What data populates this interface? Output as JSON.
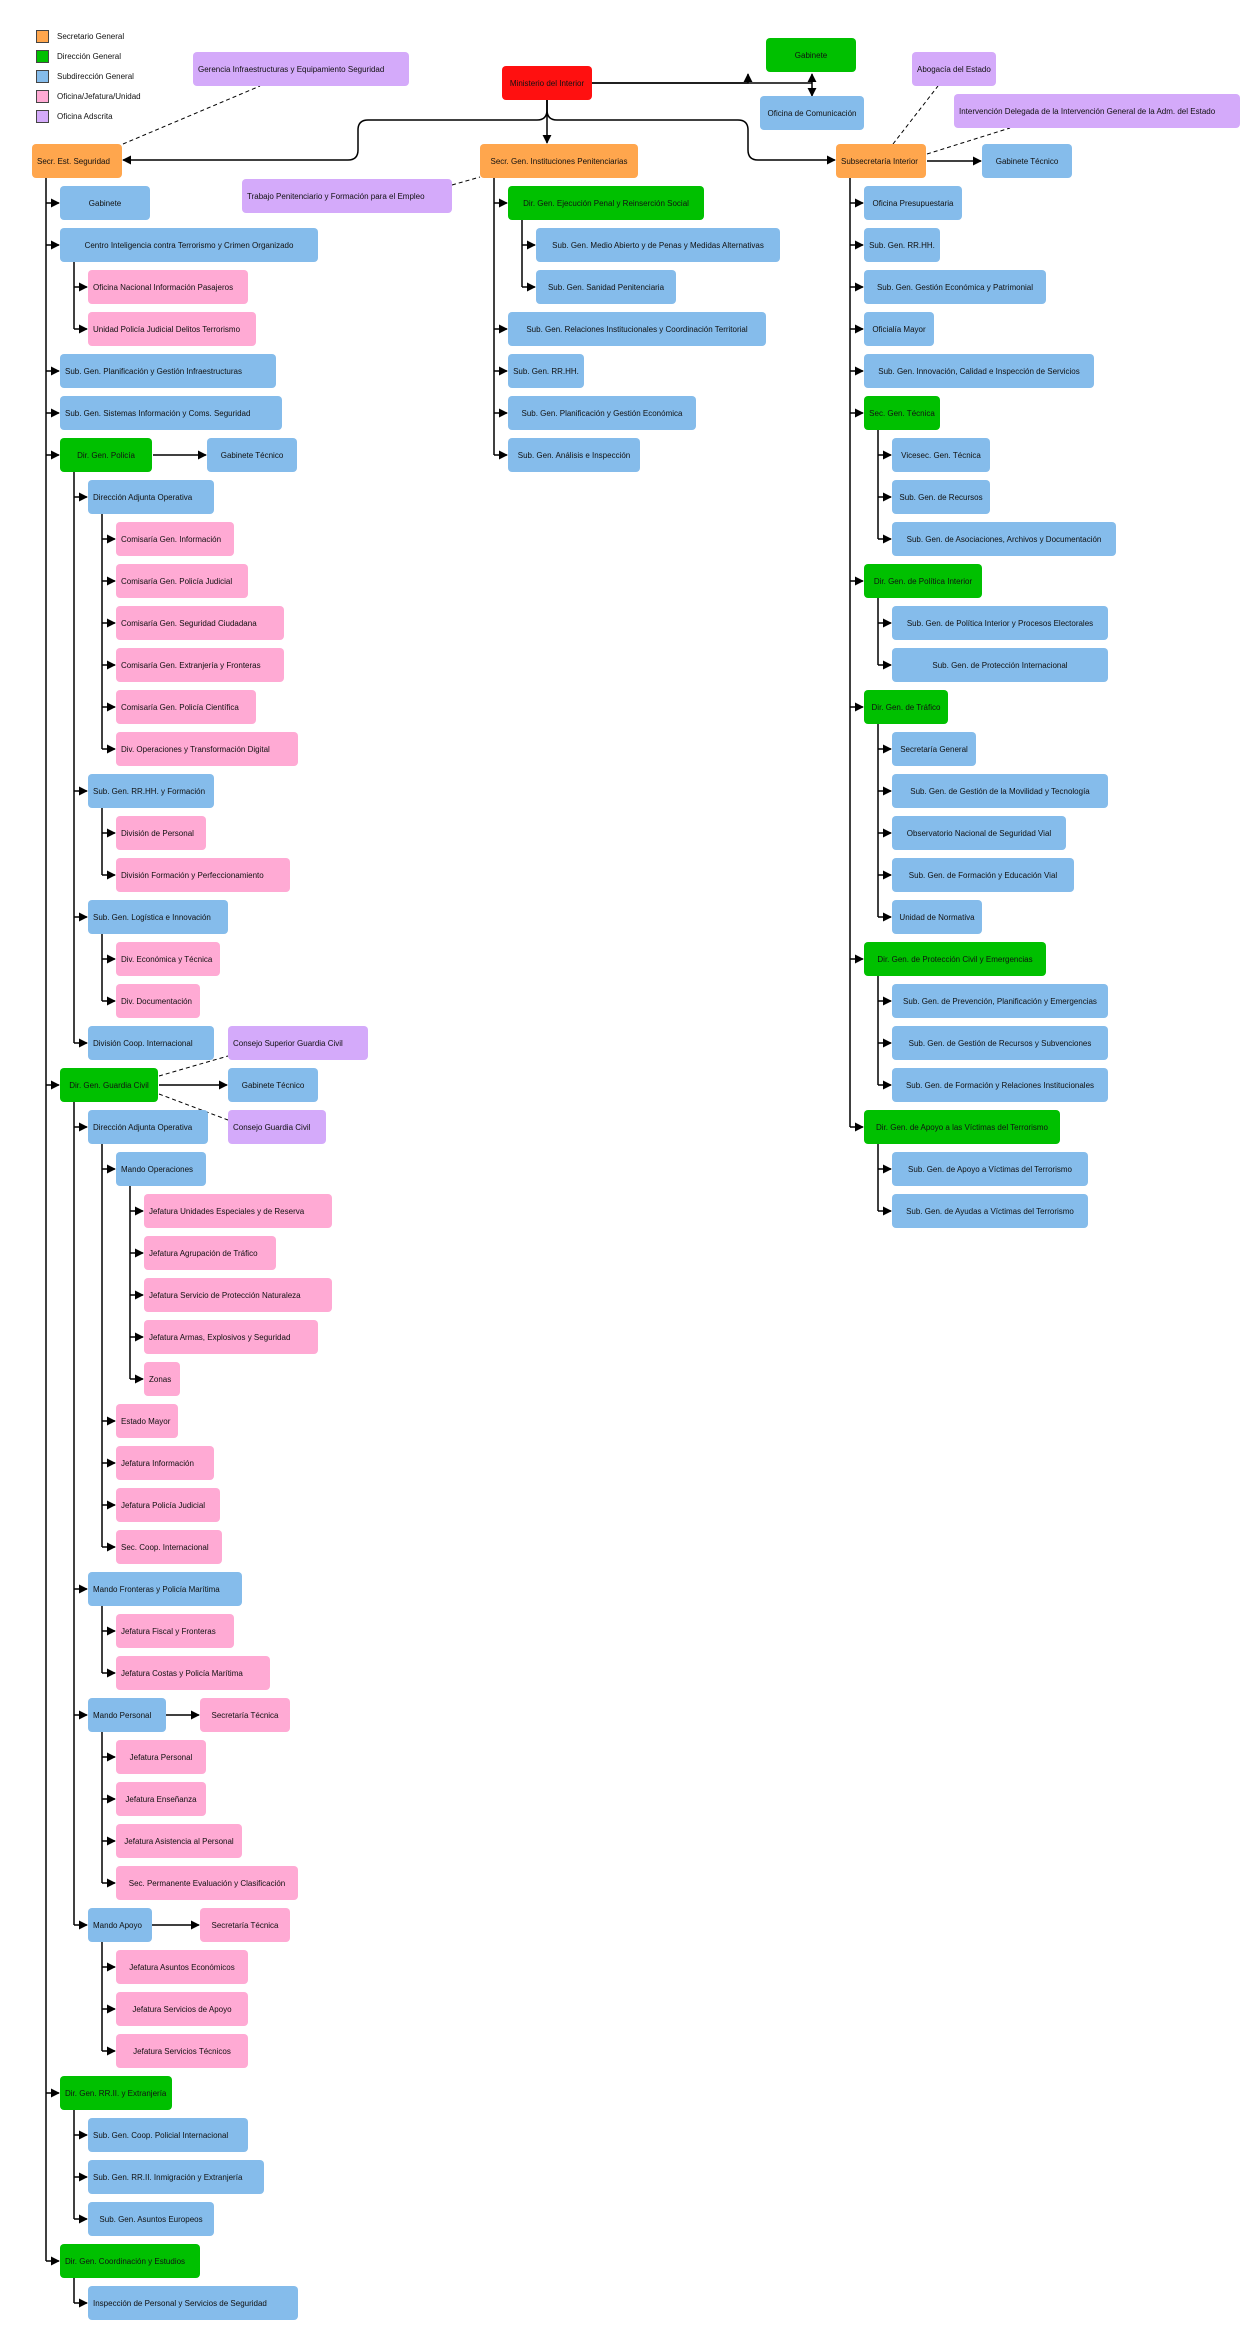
{
  "colors": {
    "secretario_general": "#FFA64D",
    "direccion_general": "#00C000",
    "subdireccion_general": "#85BCEB",
    "oficina": "#FFAAD4",
    "adscrita": "#D4AAFA",
    "ministro": "#FF1010"
  },
  "legend": [
    {
      "label": "Secretario General",
      "type": "secretario_general"
    },
    {
      "label": "Dirección General",
      "type": "direccion_general"
    },
    {
      "label": "Subdirección General",
      "type": "subdireccion_general"
    },
    {
      "label": "Oficina/Jefatura/Unidad",
      "type": "oficina"
    },
    {
      "label": "Oficina Adscrita",
      "type": "adscrita"
    }
  ],
  "nodes": {
    "ministerio": {
      "label": "Ministerio del Interior",
      "type": "ministro"
    },
    "gabinete_top": {
      "label": "Gabinete",
      "type": "direccion_general"
    },
    "oficina_comunicacion": {
      "label": "Oficina de Comunicación",
      "type": "subdireccion_general"
    },
    "gerencia": {
      "label": "Gerencia Infraestructuras y Equipamiento Seguridad",
      "type": "adscrita"
    },
    "abogacia": {
      "label": "Abogacía del Estado",
      "type": "adscrita"
    },
    "intervencion": {
      "label": "Intervención Delegada de la Intervención General de la Adm. del Estado",
      "type": "adscrita"
    },
    "ses": {
      "label": "Secr. Est. Seguridad",
      "type": "secretario_general"
    },
    "sgip": {
      "label": "Secr. Gen. Instituciones Penitenciarias",
      "type": "secretario_general"
    },
    "subint": {
      "label": "Subsecretaría Interior",
      "type": "secretario_general"
    },
    "trabajo_pen": {
      "label": "Trabajo Penitenciario y Formación para el Empleo",
      "type": "adscrita"
    },
    "gab_tec_subint": {
      "label": "Gabinete Técnico",
      "type": "subdireccion_general"
    },
    "ses_gabinete": {
      "label": "Gabinete",
      "type": "subdireccion_general"
    },
    "citco": {
      "label": "Centro Inteligencia contra Terrorismo y Crimen Organizado",
      "type": "subdireccion_general"
    },
    "onip": {
      "label": "Oficina Nacional Información Pasajeros",
      "type": "oficina"
    },
    "upjdt": {
      "label": "Unidad Policía Judicial Delitos Terrorismo",
      "type": "oficina"
    },
    "sg_planif_infra": {
      "label": "Sub. Gen. Planificación y Gestión Infraestructuras",
      "type": "subdireccion_general"
    },
    "sg_sist_info": {
      "label": "Sub. Gen. Sistemas Información y Coms. Seguridad",
      "type": "subdireccion_general"
    },
    "dg_policia": {
      "label": "Dir. Gen. Policía",
      "type": "direccion_general"
    },
    "gab_tec_policia": {
      "label": "Gabinete Técnico",
      "type": "subdireccion_general"
    },
    "p_dao": {
      "label": "Dirección Adjunta Operativa",
      "type": "subdireccion_general"
    },
    "p_com_info": {
      "label": "Comisaría Gen. Información",
      "type": "oficina"
    },
    "p_com_pj": {
      "label": "Comisaría Gen. Policía Judicial",
      "type": "oficina"
    },
    "p_com_sc": {
      "label": "Comisaría Gen. Seguridad Ciudadana",
      "type": "oficina"
    },
    "p_com_ext": {
      "label": "Comisaría Gen. Extranjería y Fronteras",
      "type": "oficina"
    },
    "p_com_cient": {
      "label": "Comisaría Gen. Policía Científica",
      "type": "oficina"
    },
    "p_div_oper": {
      "label": "Div. Operaciones y Transformación Digital",
      "type": "oficina"
    },
    "p_sg_rrhh": {
      "label": "Sub. Gen. RR.HH. y Formación",
      "type": "subdireccion_general"
    },
    "p_div_personal": {
      "label": "División de Personal",
      "type": "oficina"
    },
    "p_div_form": {
      "label": "División Formación y Perfeccionamiento",
      "type": "oficina"
    },
    "p_sg_log": {
      "label": "Sub. Gen. Logística e Innovación",
      "type": "subdireccion_general"
    },
    "p_div_econ": {
      "label": "Div. Económica y Técnica",
      "type": "oficina"
    },
    "p_div_doc": {
      "label": "Div. Documentación",
      "type": "oficina"
    },
    "p_div_coop": {
      "label": "División Coop. Internacional",
      "type": "subdireccion_general"
    },
    "consejo_sup_gc": {
      "label": "Consejo Superior Guardia Civil",
      "type": "adscrita"
    },
    "dg_gc": {
      "label": "Dir. Gen. Guardia Civil",
      "type": "direccion_general"
    },
    "gab_tec_gc": {
      "label": "Gabinete Técnico",
      "type": "subdireccion_general"
    },
    "consejo_gc": {
      "label": "Consejo Guardia Civil",
      "type": "adscrita"
    },
    "gc_dao": {
      "label": "Dirección Adjunta Operativa",
      "type": "subdireccion_general"
    },
    "gc_mando_oper": {
      "label": "Mando Operaciones",
      "type": "subdireccion_general"
    },
    "gc_j_uer": {
      "label": "Jefatura Unidades Especiales y de Reserva",
      "type": "oficina"
    },
    "gc_j_trafico": {
      "label": "Jefatura Agrupación de Tráfico",
      "type": "oficina"
    },
    "gc_j_seprona": {
      "label": "Jefatura Servicio de Protección Naturaleza",
      "type": "oficina"
    },
    "gc_j_armas": {
      "label": "Jefatura Armas, Explosivos y Seguridad",
      "type": "oficina"
    },
    "gc_zonas": {
      "label": "Zonas",
      "type": "oficina"
    },
    "gc_estado_mayor": {
      "label": "Estado Mayor",
      "type": "oficina"
    },
    "gc_j_info": {
      "label": "Jefatura Información",
      "type": "oficina"
    },
    "gc_j_pj": {
      "label": "Jefatura Policía Judicial",
      "type": "oficina"
    },
    "gc_sec_coop": {
      "label": "Sec. Coop. Internacional",
      "type": "oficina"
    },
    "gc_mando_front": {
      "label": "Mando Fronteras y Policía Marítima",
      "type": "subdireccion_general"
    },
    "gc_j_fiscal": {
      "label": "Jefatura Fiscal y Fronteras",
      "type": "oficina"
    },
    "gc_j_costas": {
      "label": "Jefatura Costas y Policía Marítima",
      "type": "oficina"
    },
    "gc_mando_pers": {
      "label": "Mando Personal",
      "type": "subdireccion_general"
    },
    "gc_sec_tec_1": {
      "label": "Secretaría Técnica",
      "type": "oficina"
    },
    "gc_j_personal": {
      "label": "Jefatura Personal",
      "type": "oficina"
    },
    "gc_j_ensenanza": {
      "label": "Jefatura Enseñanza",
      "type": "oficina"
    },
    "gc_j_asistencia": {
      "label": "Jefatura Asistencia al Personal",
      "type": "oficina"
    },
    "gc_sec_perm": {
      "label": "Sec. Permanente Evaluación y Clasificación",
      "type": "oficina"
    },
    "gc_mando_apoyo": {
      "label": "Mando Apoyo",
      "type": "subdireccion_general"
    },
    "gc_sec_tec_2": {
      "label": "Secretaría Técnica",
      "type": "oficina"
    },
    "gc_j_asuntos": {
      "label": "Jefatura Asuntos Económicos",
      "type": "oficina"
    },
    "gc_j_serv_apoyo": {
      "label": "Jefatura Servicios de Apoyo",
      "type": "oficina"
    },
    "gc_j_serv_tec": {
      "label": "Jefatura Servicios Técnicos",
      "type": "oficina"
    },
    "dg_rrii": {
      "label": "Dir. Gen. RR.II. y Extranjería",
      "type": "direccion_general"
    },
    "rrii_sg_coop": {
      "label": "Sub. Gen. Coop. Policial Internacional",
      "type": "subdireccion_general"
    },
    "rrii_sg_inmig": {
      "label": "Sub. Gen. RR.II. Inmigración y Extranjería",
      "type": "subdireccion_general"
    },
    "rrii_sg_eu": {
      "label": "Sub. Gen. Asuntos Europeos",
      "type": "subdireccion_general"
    },
    "dg_coord": {
      "label": "Dir. Gen. Coordinación y Estudios",
      "type": "direccion_general"
    },
    "coord_insp": {
      "label": "Inspección de Personal y Servicios de Seguridad",
      "type": "subdireccion_general"
    },
    "dg_ejec_penal": {
      "label": "Dir. Gen. Ejecución Penal y Reinserción Social",
      "type": "direccion_general"
    },
    "sg_medio_abierto": {
      "label": "Sub. Gen. Medio Abierto y de Penas y Medidas Alternativas",
      "type": "subdireccion_general"
    },
    "sg_sanidad_pen": {
      "label": "Sub. Gen. Sanidad Penitenciaria",
      "type": "subdireccion_general"
    },
    "sg_rel_inst_pen": {
      "label": "Sub. Gen. Relaciones Institucionales y Coordinación Territorial",
      "type": "subdireccion_general"
    },
    "sg_rrhh_pen": {
      "label": "Sub. Gen. RR.HH.",
      "type": "subdireccion_general"
    },
    "sg_planif_econ_pen": {
      "label": "Sub. Gen. Planificación y Gestión Económica",
      "type": "subdireccion_general"
    },
    "sg_analisis_pen": {
      "label": "Sub. Gen. Análisis e Inspección",
      "type": "subdireccion_general"
    },
    "ofi_presup": {
      "label": "Oficina Presupuestaria",
      "type": "subdireccion_general"
    },
    "si_rrhh": {
      "label": "Sub. Gen. RR.HH.",
      "type": "subdireccion_general"
    },
    "si_gest_econ": {
      "label": "Sub. Gen. Gestión Económica y Patrimonial",
      "type": "subdireccion_general"
    },
    "oficialia": {
      "label": "Oficialía Mayor",
      "type": "subdireccion_general"
    },
    "si_innov": {
      "label": "Sub. Gen. Innovación, Calidad e Inspección de Servicios",
      "type": "subdireccion_general"
    },
    "sec_gen_tec": {
      "label": "Sec. Gen. Técnica",
      "type": "direccion_general"
    },
    "vicesec": {
      "label": "Vicesec. Gen. Técnica",
      "type": "subdireccion_general"
    },
    "sgt_recursos": {
      "label": "Sub. Gen. de Recursos",
      "type": "subdireccion_general"
    },
    "sgt_asoc": {
      "label": "Sub. Gen. de Asociaciones, Archivos y Documentación",
      "type": "subdireccion_general"
    },
    "dg_pol_int": {
      "label": "Dir. Gen. de Política Interior",
      "type": "direccion_general"
    },
    "pi_sg_procesos": {
      "label": "Sub. Gen. de Política Interior y Procesos Electorales",
      "type": "subdireccion_general"
    },
    "pi_sg_prot_int": {
      "label": "Sub. Gen. de Protección Internacional",
      "type": "subdireccion_general"
    },
    "dg_trafico": {
      "label": "Dir. Gen. de Tráfico",
      "type": "direccion_general"
    },
    "tr_sec_gen": {
      "label": "Secretaría General",
      "type": "subdireccion_general"
    },
    "tr_sg_movilidad": {
      "label": "Sub. Gen. de Gestión de la Movilidad y Tecnología",
      "type": "subdireccion_general"
    },
    "tr_observatorio": {
      "label": "Observatorio Nacional de Seguridad Vial",
      "type": "subdireccion_general"
    },
    "tr_sg_formacion": {
      "label": "Sub. Gen. de Formación y Educación Vial",
      "type": "subdireccion_general"
    },
    "tr_normativa": {
      "label": "Unidad de Normativa",
      "type": "subdireccion_general"
    },
    "dg_prot_civil": {
      "label": "Dir. Gen. de Protección Civil y Emergencias",
      "type": "direccion_general"
    },
    "pc_sg_prev": {
      "label": "Sub. Gen. de Prevención, Planificación y Emergencias",
      "type": "subdireccion_general"
    },
    "pc_sg_recursos": {
      "label": "Sub. Gen. de Gestión de Recursos y Subvenciones",
      "type": "subdireccion_general"
    },
    "pc_sg_formacion": {
      "label": "Sub. Gen. de Formación y Relaciones Institucionales",
      "type": "subdireccion_general"
    },
    "dg_victimas": {
      "label": "Dir. Gen. de Apoyo a las Víctimas del Terrorismo",
      "type": "direccion_general"
    },
    "vt_sg_apoyo": {
      "label": "Sub. Gen. de Apoyo a Víctimas del Terrorismo",
      "type": "subdireccion_general"
    },
    "vt_sg_ayudas": {
      "label": "Sub. Gen. de Ayudas a Víctimas del Terrorismo",
      "type": "subdireccion_general"
    }
  }
}
